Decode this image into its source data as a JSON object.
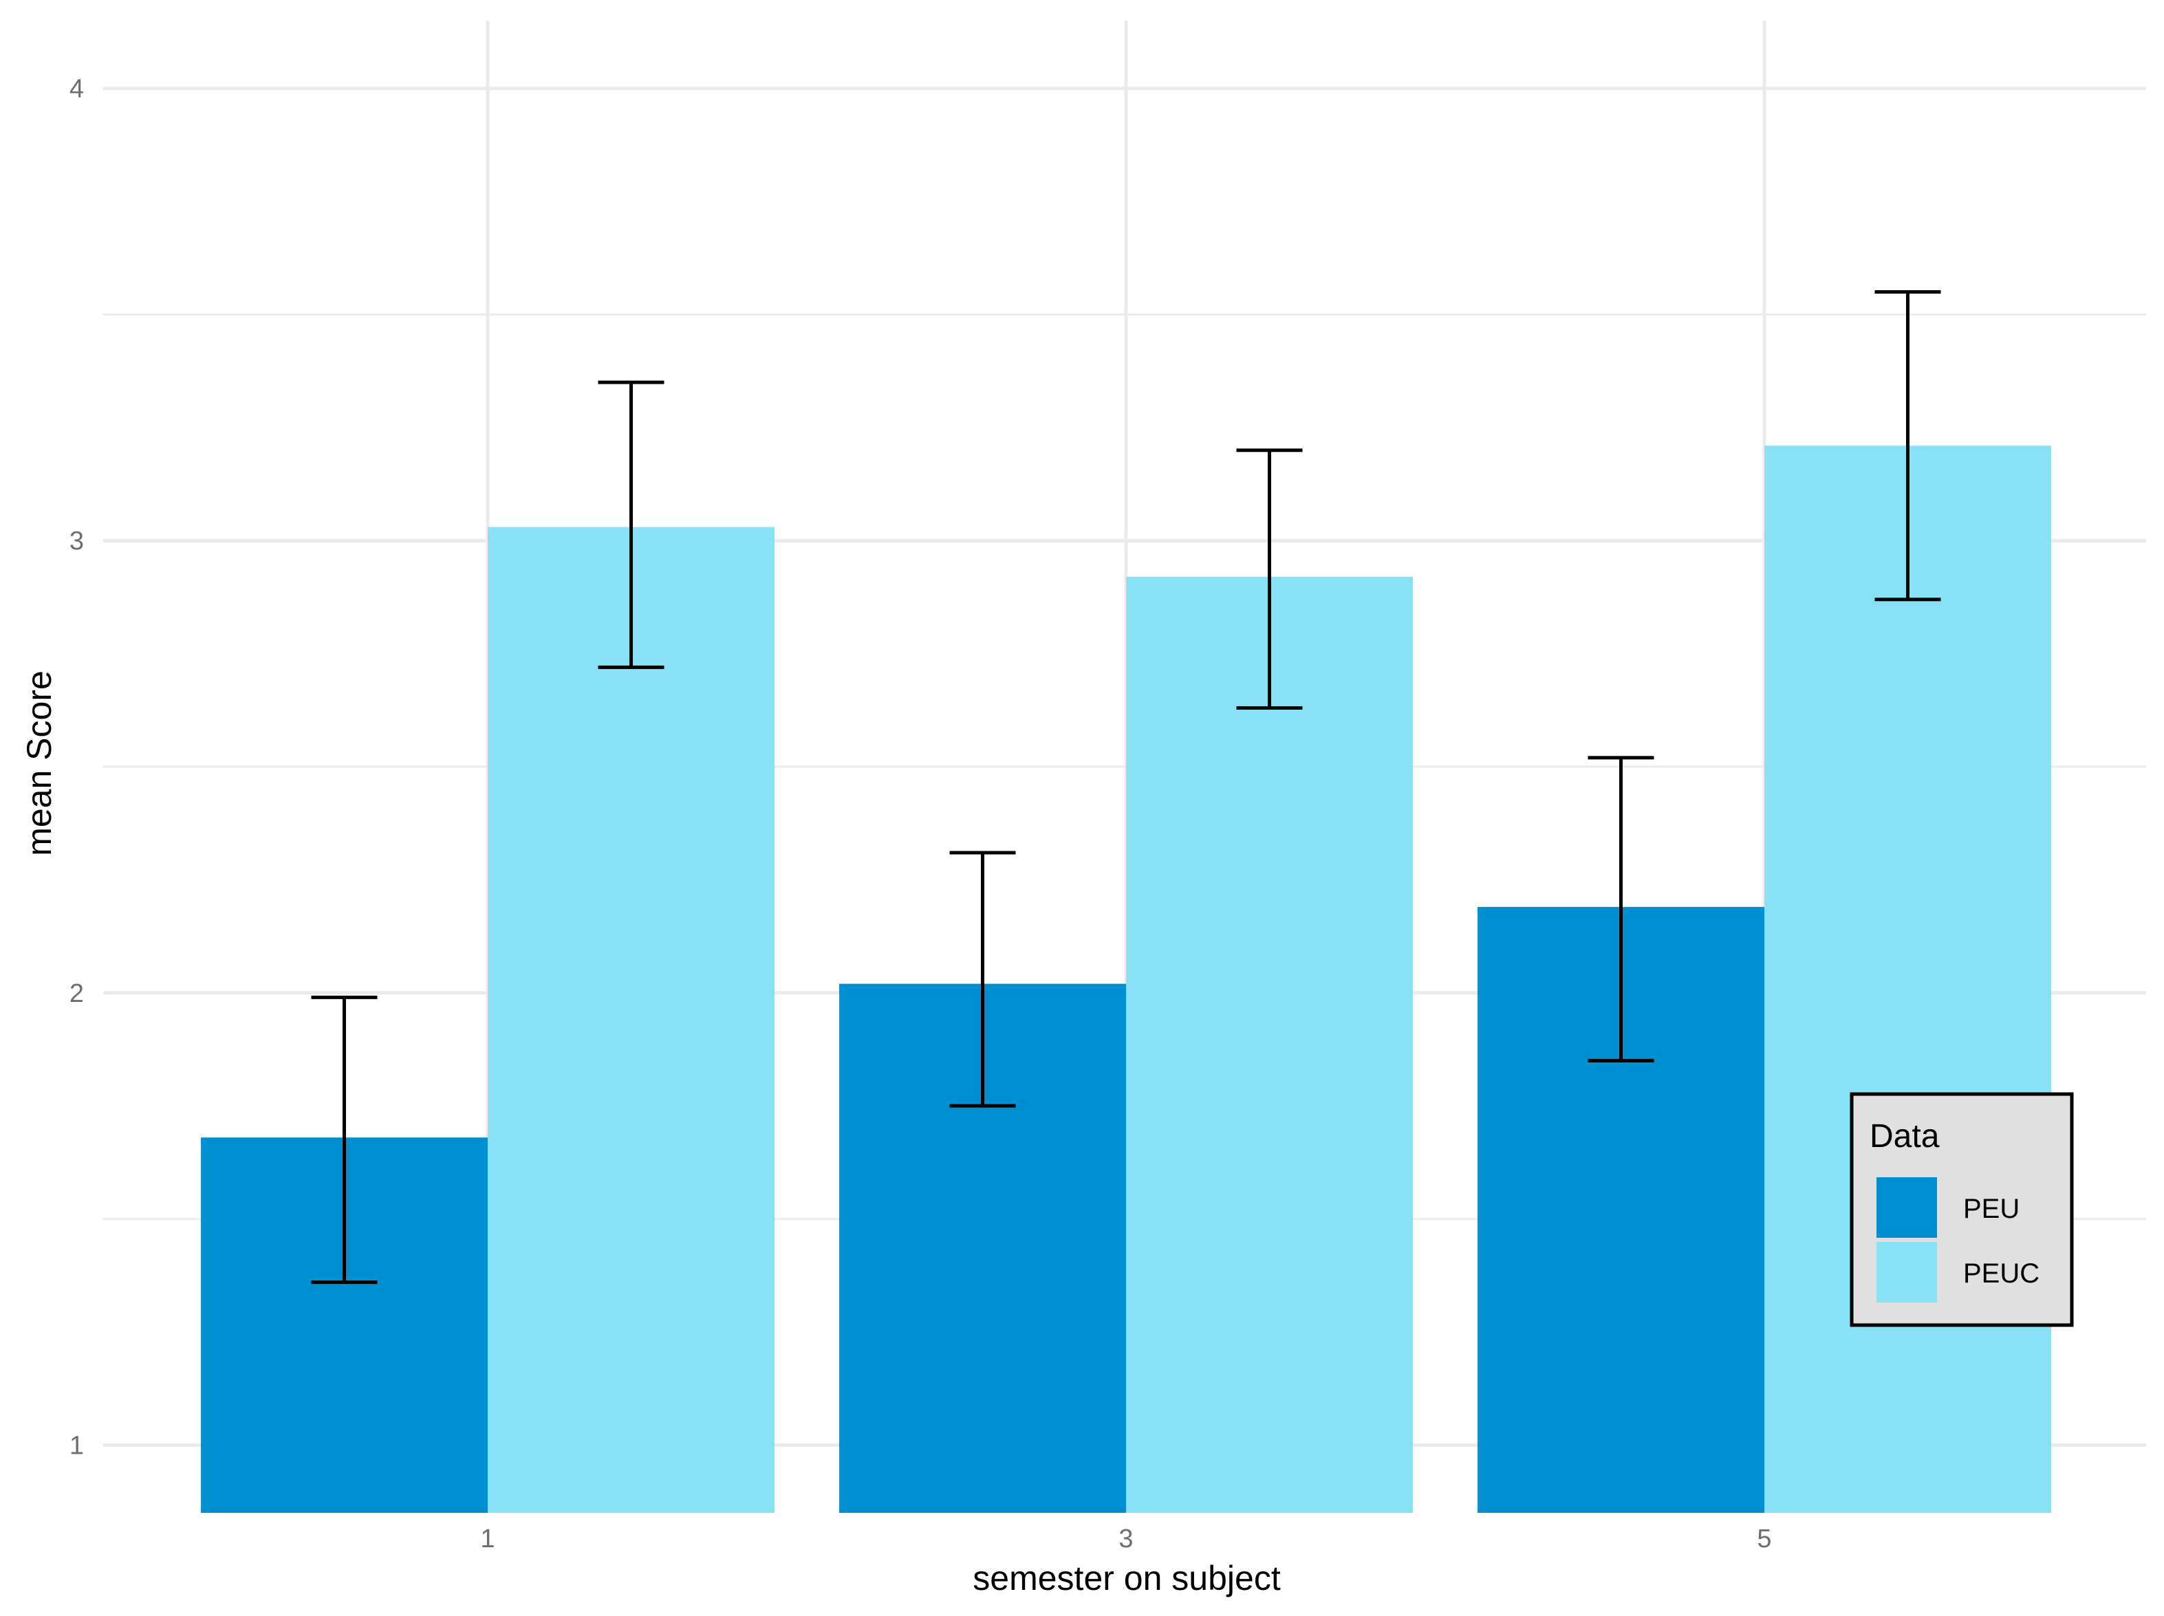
{
  "chart_data": {
    "type": "bar",
    "title": "",
    "xlabel": "semester on subject",
    "ylabel": "mean Score",
    "categories": [
      "1",
      "3",
      "5"
    ],
    "series": [
      {
        "name": "PEU",
        "color": "#008fd1",
        "values": [
          1.68,
          2.02,
          2.19
        ],
        "error_low": [
          1.36,
          1.75,
          1.85
        ],
        "error_high": [
          1.99,
          2.31,
          2.52
        ]
      },
      {
        "name": "PEUC",
        "color": "#88e1f5",
        "values": [
          3.03,
          2.92,
          3.21
        ],
        "error_low": [
          2.72,
          2.63,
          2.87
        ],
        "error_high": [
          3.35,
          3.2,
          3.55
        ]
      }
    ],
    "ylim": [
      0.85,
      4.15
    ],
    "yticks": [
      "1",
      "2",
      "3",
      "4"
    ],
    "grid": true,
    "legend": {
      "title": "Data",
      "position": "bottom-right"
    }
  }
}
